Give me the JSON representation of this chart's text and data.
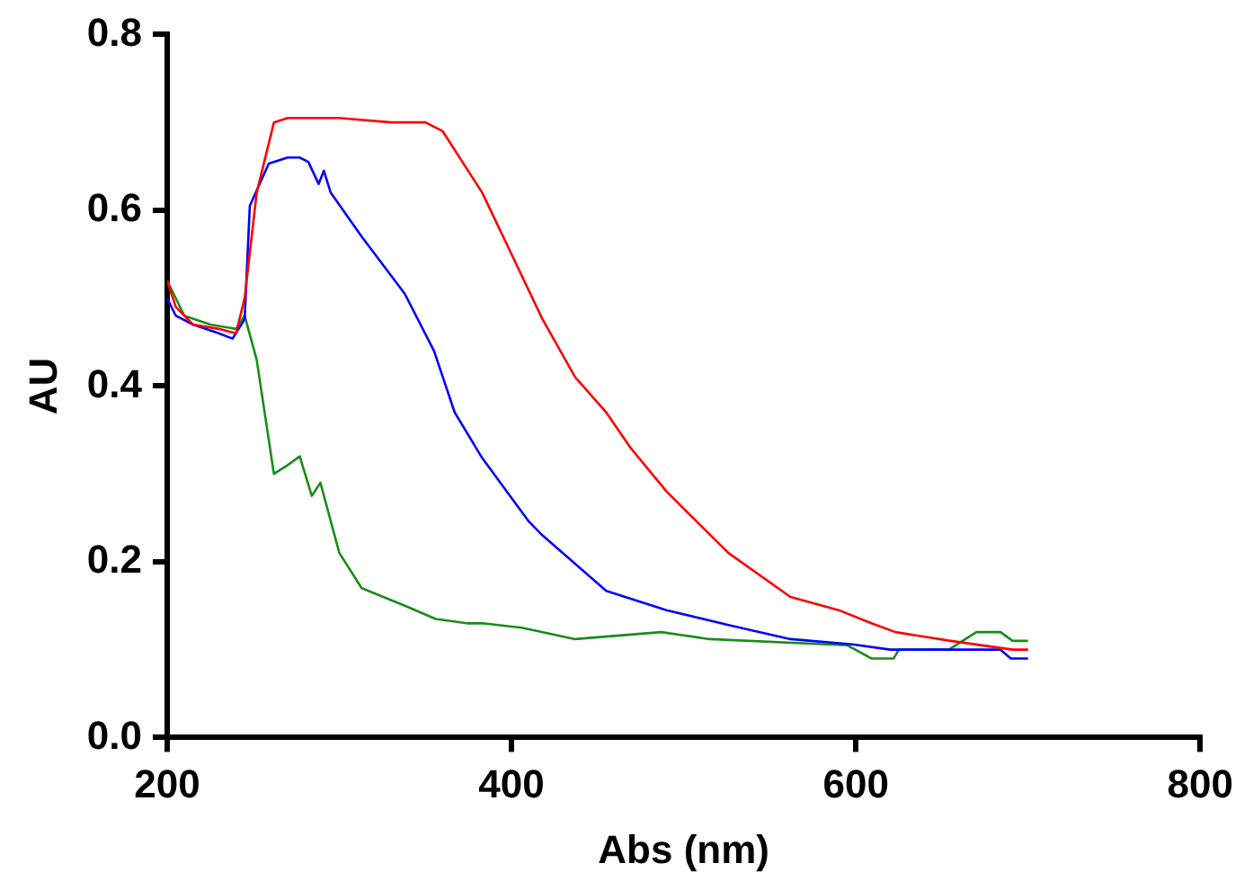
{
  "chart_data": {
    "type": "line",
    "xlabel": "Abs (nm)",
    "ylabel": "AU",
    "xlim": [
      200,
      800
    ],
    "xticks": [
      200,
      400,
      600,
      800
    ],
    "ylim": [
      0,
      0.8
    ],
    "yticks": [
      {
        "value": 0,
        "label": "0.0"
      },
      0.2,
      0.4,
      0.6,
      0.8
    ],
    "grid": false,
    "legend": false,
    "marker": "none",
    "line_style": "solid",
    "series": [
      {
        "color": "#ff0000",
        "x": [
          200,
          205,
          215,
          230,
          240,
          245,
          252,
          262,
          270,
          300,
          330,
          350,
          360,
          383,
          400,
          418,
          437,
          455,
          469,
          490,
          526,
          562,
          590,
          609,
          623,
          655,
          691,
          700
        ],
        "values": [
          0.52,
          0.49,
          0.47,
          0.465,
          0.46,
          0.5,
          0.62,
          0.7,
          0.705,
          0.705,
          0.7,
          0.7,
          0.69,
          0.62,
          0.55,
          0.476,
          0.41,
          0.37,
          0.33,
          0.28,
          0.21,
          0.16,
          0.145,
          0.13,
          0.12,
          0.11,
          0.1,
          0.1
        ]
      },
      {
        "color": "#0000ff",
        "x": [
          200,
          205,
          215,
          230,
          238,
          245,
          248,
          259,
          270,
          277,
          282,
          288,
          291,
          295,
          313,
          338,
          355,
          367,
          383,
          410,
          418,
          455,
          490,
          526,
          562,
          598,
          620,
          684,
          690,
          700
        ],
        "values": [
          0.5,
          0.48,
          0.47,
          0.46,
          0.454,
          0.476,
          0.605,
          0.653,
          0.66,
          0.66,
          0.655,
          0.63,
          0.645,
          0.62,
          0.57,
          0.505,
          0.44,
          0.37,
          0.318,
          0.246,
          0.23,
          0.167,
          0.145,
          0.128,
          0.112,
          0.106,
          0.1,
          0.1,
          0.09,
          0.09
        ]
      },
      {
        "color": "#1a8c1a",
        "x": [
          200,
          210,
          225,
          240,
          245,
          252,
          262,
          270,
          277,
          284,
          289,
          300,
          313,
          338,
          356,
          374,
          383,
          406,
          437,
          487,
          515,
          595,
          609,
          622,
          625,
          654,
          670,
          684,
          691,
          700
        ],
        "values": [
          0.52,
          0.48,
          0.47,
          0.465,
          0.48,
          0.43,
          0.3,
          0.31,
          0.32,
          0.275,
          0.29,
          0.21,
          0.17,
          0.15,
          0.135,
          0.13,
          0.13,
          0.125,
          0.112,
          0.12,
          0.112,
          0.105,
          0.09,
          0.09,
          0.1,
          0.1,
          0.12,
          0.12,
          0.11,
          0.11
        ]
      }
    ]
  }
}
